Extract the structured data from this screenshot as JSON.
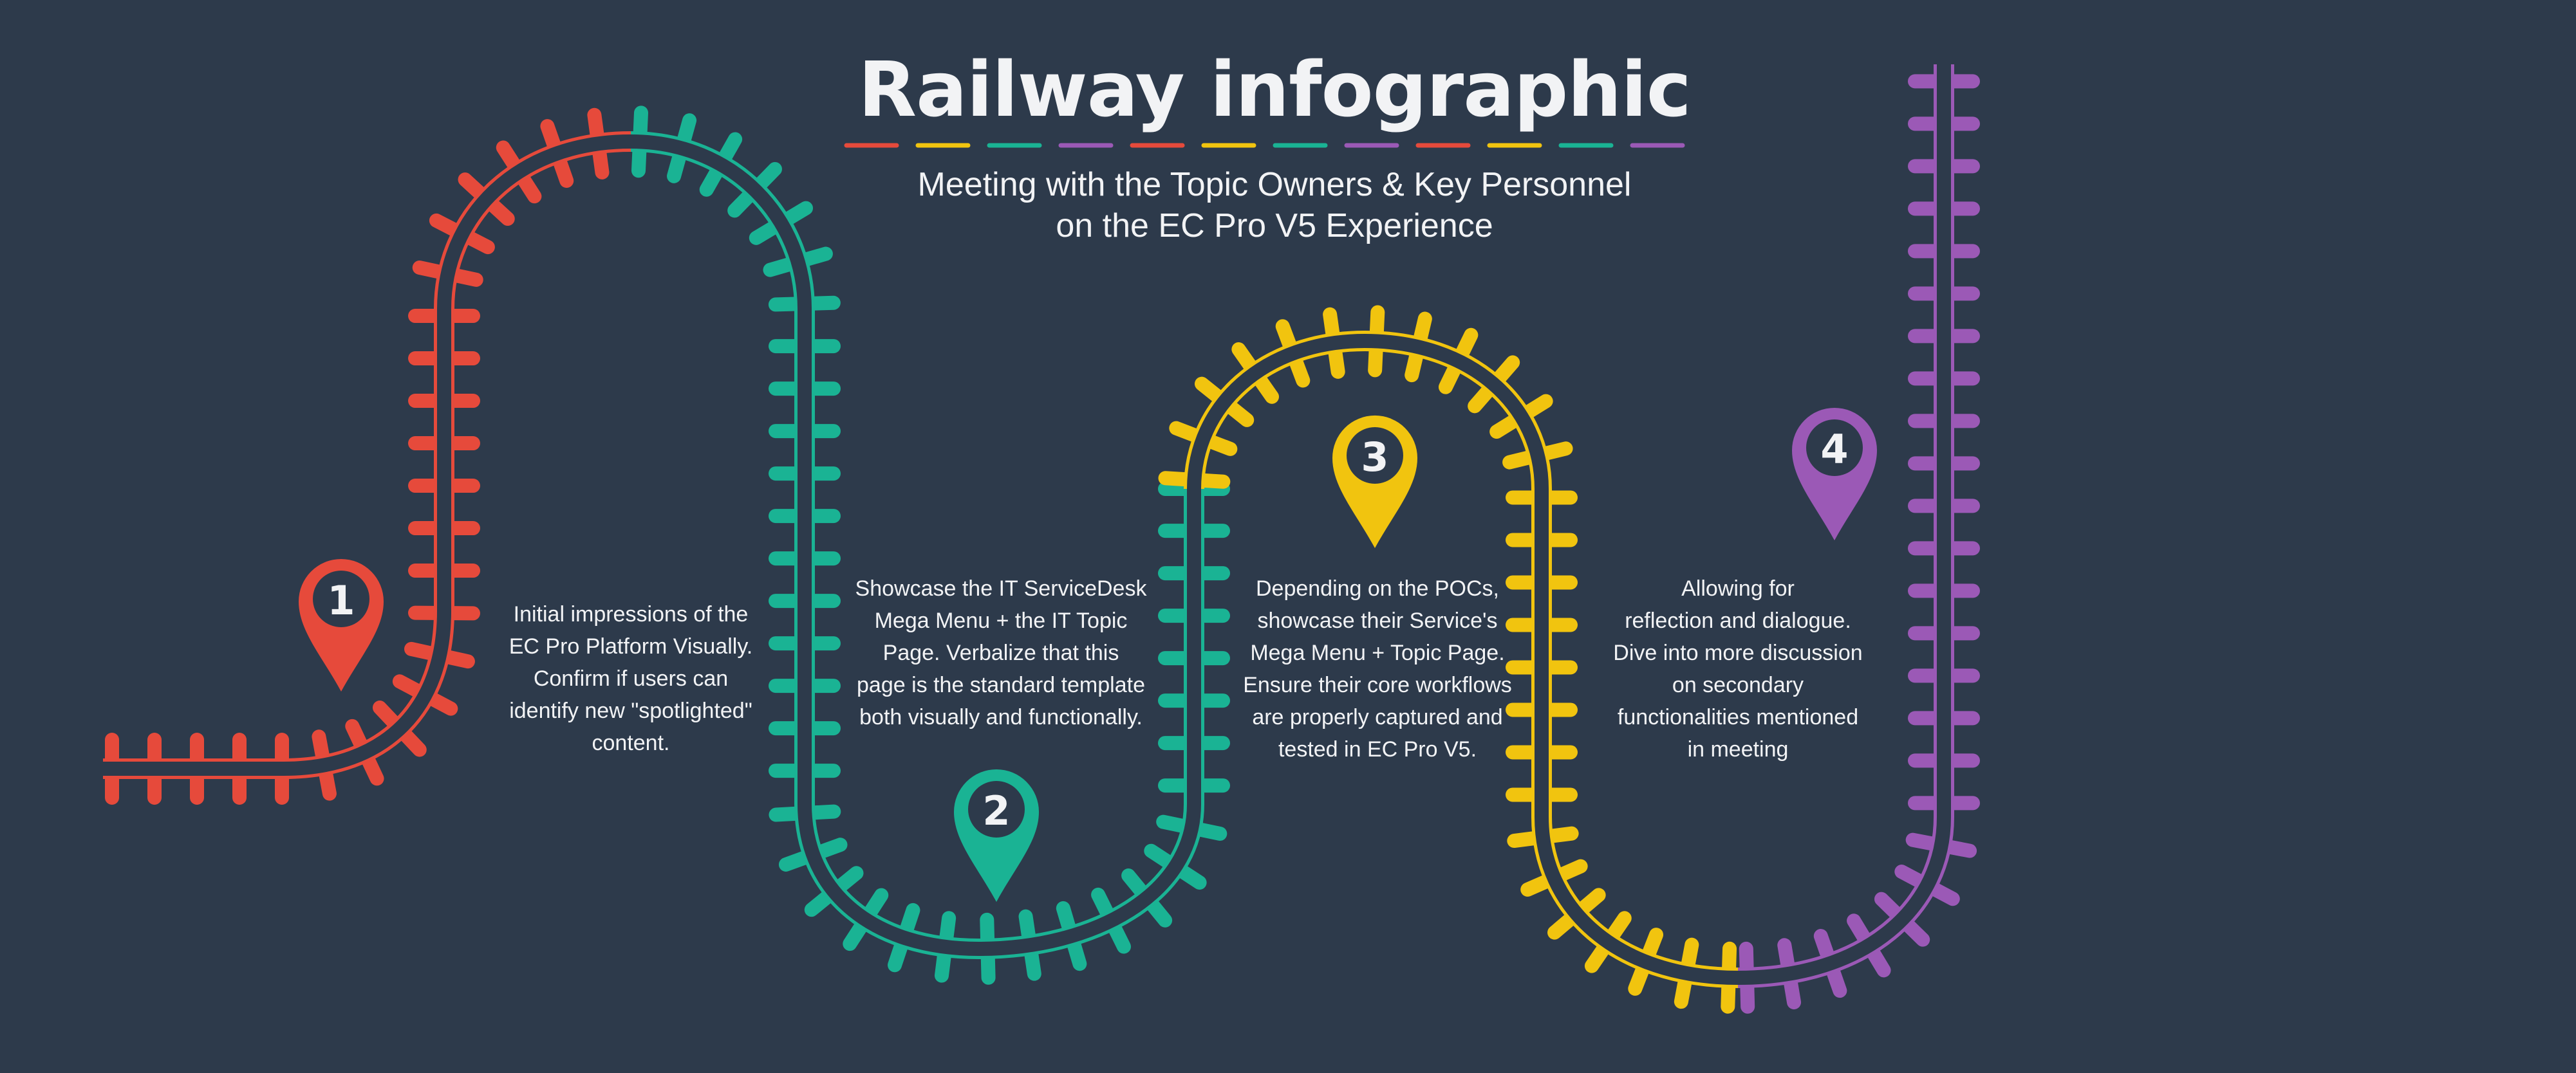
{
  "title": "Railway infographic",
  "subtitle": {
    "line1": "Meeting with the Topic Owners & Key Personnel",
    "line2": "on the EC Pro V5 Experience"
  },
  "colors": {
    "background": "#2d3a4b",
    "text": "#f2f3f5",
    "red": "#e64a3b",
    "teal": "#1ab394",
    "yellow": "#f1c40f",
    "purple": "#9b59b6"
  },
  "title_underline_colors": [
    "red",
    "yellow",
    "teal",
    "purple",
    "red",
    "yellow",
    "teal",
    "purple",
    "red",
    "yellow",
    "teal",
    "purple"
  ],
  "steps": [
    {
      "number": "1",
      "color": "red",
      "lines": [
        "Initial impressions of the",
        "EC Pro Platform Visually.",
        "Confirm if users can",
        "identify new \"spotlighted\"",
        "content."
      ]
    },
    {
      "number": "2",
      "color": "teal",
      "lines": [
        "Showcase the IT ServiceDesk",
        "Mega Menu + the IT Topic",
        "Page. Verbalize that this",
        "page is the standard template",
        "both visually and functionally."
      ]
    },
    {
      "number": "3",
      "color": "yellow",
      "lines": [
        "Depending on the POCs,",
        "showcase their Service's",
        "Mega Menu + Topic Page.",
        "Ensure their core workflows",
        "are properly captured and",
        "tested in EC Pro V5."
      ]
    },
    {
      "number": "4",
      "color": "purple",
      "lines": [
        "Allowing for",
        "reflection and dialogue.",
        "Dive into more discussion",
        "on secondary",
        "functionalities mentioned",
        "in meeting"
      ]
    }
  ]
}
